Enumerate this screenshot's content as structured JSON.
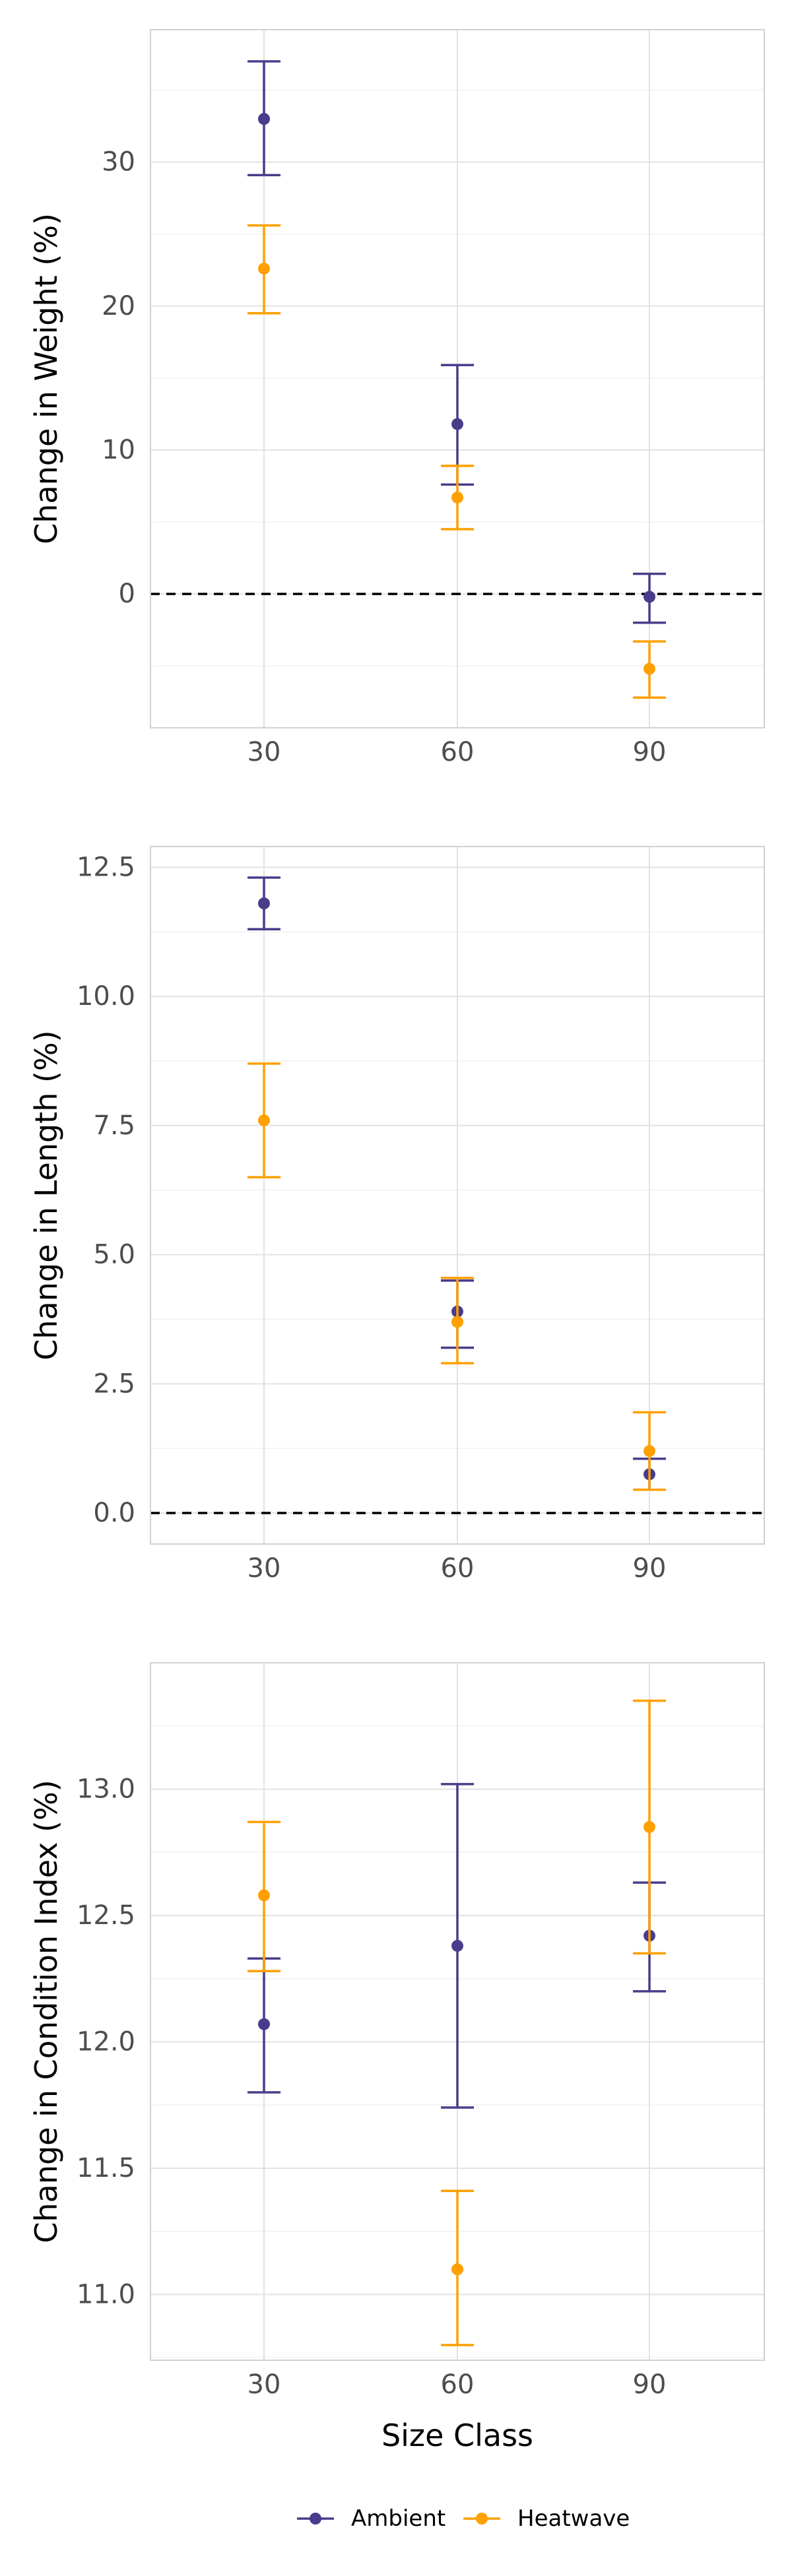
{
  "colors": {
    "ambient": "#483D8B",
    "heatwave": "#FFA000",
    "grid_major": "#E2E2E2",
    "grid_minor": "#F0F0F0",
    "panel_border": "#D2D2D2",
    "tick_text": "#4D4D4D",
    "axis_title": "#000000",
    "zero_line": "#000000"
  },
  "chart_data": [
    {
      "type": "scatter",
      "subtype": "point-with-error-bars",
      "ylabel": "Change in Weight (%)",
      "xlabel": "",
      "x_categories": [
        "30",
        "60",
        "90"
      ],
      "y_ticks": [
        "0",
        "10",
        "20",
        "30"
      ],
      "ylim": [
        -9.3,
        39.2
      ],
      "zero_line": true,
      "grid": true,
      "series": [
        {
          "name": "Ambient",
          "color": "ambient",
          "points": [
            {
              "x": "30",
              "y": 33.0,
              "lower": 29.1,
              "upper": 37.0
            },
            {
              "x": "60",
              "y": 11.8,
              "lower": 7.6,
              "upper": 15.9
            },
            {
              "x": "90",
              "y": -0.2,
              "lower": -2.0,
              "upper": 1.4
            }
          ]
        },
        {
          "name": "Heatwave",
          "color": "heatwave",
          "points": [
            {
              "x": "30",
              "y": 22.6,
              "lower": 19.5,
              "upper": 25.6
            },
            {
              "x": "60",
              "y": 6.7,
              "lower": 4.5,
              "upper": 8.9
            },
            {
              "x": "90",
              "y": -5.2,
              "lower": -7.2,
              "upper": -3.3
            }
          ]
        }
      ]
    },
    {
      "type": "scatter",
      "subtype": "point-with-error-bars",
      "ylabel": "Change in Length (%)",
      "xlabel": "",
      "x_categories": [
        "30",
        "60",
        "90"
      ],
      "y_ticks": [
        "0.0",
        "2.5",
        "5.0",
        "7.5",
        "10.0",
        "12.5"
      ],
      "ylim": [
        -0.6,
        12.9
      ],
      "zero_line": true,
      "grid": true,
      "series": [
        {
          "name": "Ambient",
          "color": "ambient",
          "points": [
            {
              "x": "30",
              "y": 11.8,
              "lower": 11.3,
              "upper": 12.3
            },
            {
              "x": "60",
              "y": 3.9,
              "lower": 3.2,
              "upper": 4.5
            },
            {
              "x": "90",
              "y": 0.75,
              "lower": 0.45,
              "upper": 1.05
            }
          ]
        },
        {
          "name": "Heatwave",
          "color": "heatwave",
          "points": [
            {
              "x": "30",
              "y": 7.6,
              "lower": 6.5,
              "upper": 8.7
            },
            {
              "x": "60",
              "y": 3.7,
              "lower": 2.9,
              "upper": 4.55
            },
            {
              "x": "90",
              "y": 1.2,
              "lower": 0.45,
              "upper": 1.95
            }
          ]
        }
      ]
    },
    {
      "type": "scatter",
      "subtype": "point-with-error-bars",
      "ylabel": "Change in Condition Index (%)",
      "xlabel": "Size Class",
      "x_categories": [
        "30",
        "60",
        "90"
      ],
      "y_ticks": [
        "11.0",
        "11.5",
        "12.0",
        "12.5",
        "13.0"
      ],
      "ylim": [
        10.74,
        13.5
      ],
      "zero_line": false,
      "grid": true,
      "series": [
        {
          "name": "Ambient",
          "color": "ambient",
          "points": [
            {
              "x": "30",
              "y": 12.07,
              "lower": 11.8,
              "upper": 12.33
            },
            {
              "x": "60",
              "y": 12.38,
              "lower": 11.74,
              "upper": 13.02
            },
            {
              "x": "90",
              "y": 12.42,
              "lower": 12.2,
              "upper": 12.63
            }
          ]
        },
        {
          "name": "Heatwave",
          "color": "heatwave",
          "points": [
            {
              "x": "30",
              "y": 12.58,
              "lower": 12.28,
              "upper": 12.87
            },
            {
              "x": "60",
              "y": 11.1,
              "lower": 10.8,
              "upper": 11.41
            },
            {
              "x": "90",
              "y": 12.85,
              "lower": 12.35,
              "upper": 13.35
            }
          ]
        }
      ]
    }
  ],
  "legend": {
    "position": "bottom",
    "items": [
      {
        "label": "Ambient",
        "color": "ambient"
      },
      {
        "label": "Heatwave",
        "color": "heatwave"
      }
    ]
  }
}
